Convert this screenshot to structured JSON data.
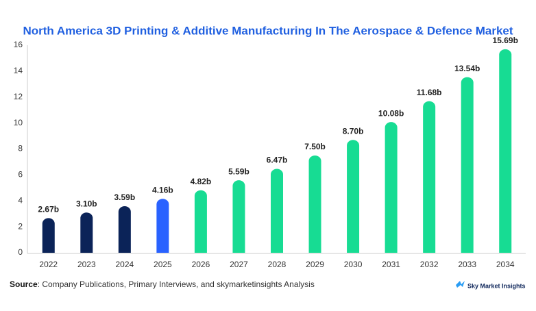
{
  "chart_data": {
    "type": "bar",
    "title": "North America 3D Printing & Additive Manufacturing In The Aerospace & Defence Market",
    "categories": [
      "2022",
      "2023",
      "2024",
      "2025",
      "2026",
      "2027",
      "2028",
      "2029",
      "2030",
      "2031",
      "2032",
      "2033",
      "2034"
    ],
    "values": [
      2.67,
      3.1,
      3.59,
      4.16,
      4.82,
      5.59,
      6.47,
      7.5,
      8.7,
      10.08,
      11.68,
      13.54,
      15.69
    ],
    "value_labels": [
      "2.67b",
      "3.10b",
      "3.59b",
      "4.16b",
      "4.82b",
      "5.59b",
      "6.47b",
      "7.50b",
      "8.70b",
      "10.08b",
      "11.68b",
      "13.54b",
      "15.69b"
    ],
    "colors": [
      "#0b2358",
      "#0b2358",
      "#0b2358",
      "#2962ff",
      "#17dc93",
      "#17dc93",
      "#17dc93",
      "#17dc93",
      "#17dc93",
      "#17dc93",
      "#17dc93",
      "#17dc93",
      "#17dc93"
    ],
    "ylim": [
      0,
      16
    ],
    "yticks": [
      0,
      2,
      4,
      6,
      8,
      10,
      12,
      14,
      16
    ],
    "grid": false
  },
  "footer": {
    "source_label": "Source",
    "source_text": ": Company Publications, Primary Interviews, and skymarketinsights Analysis",
    "brand": "Sky Market Insights"
  }
}
